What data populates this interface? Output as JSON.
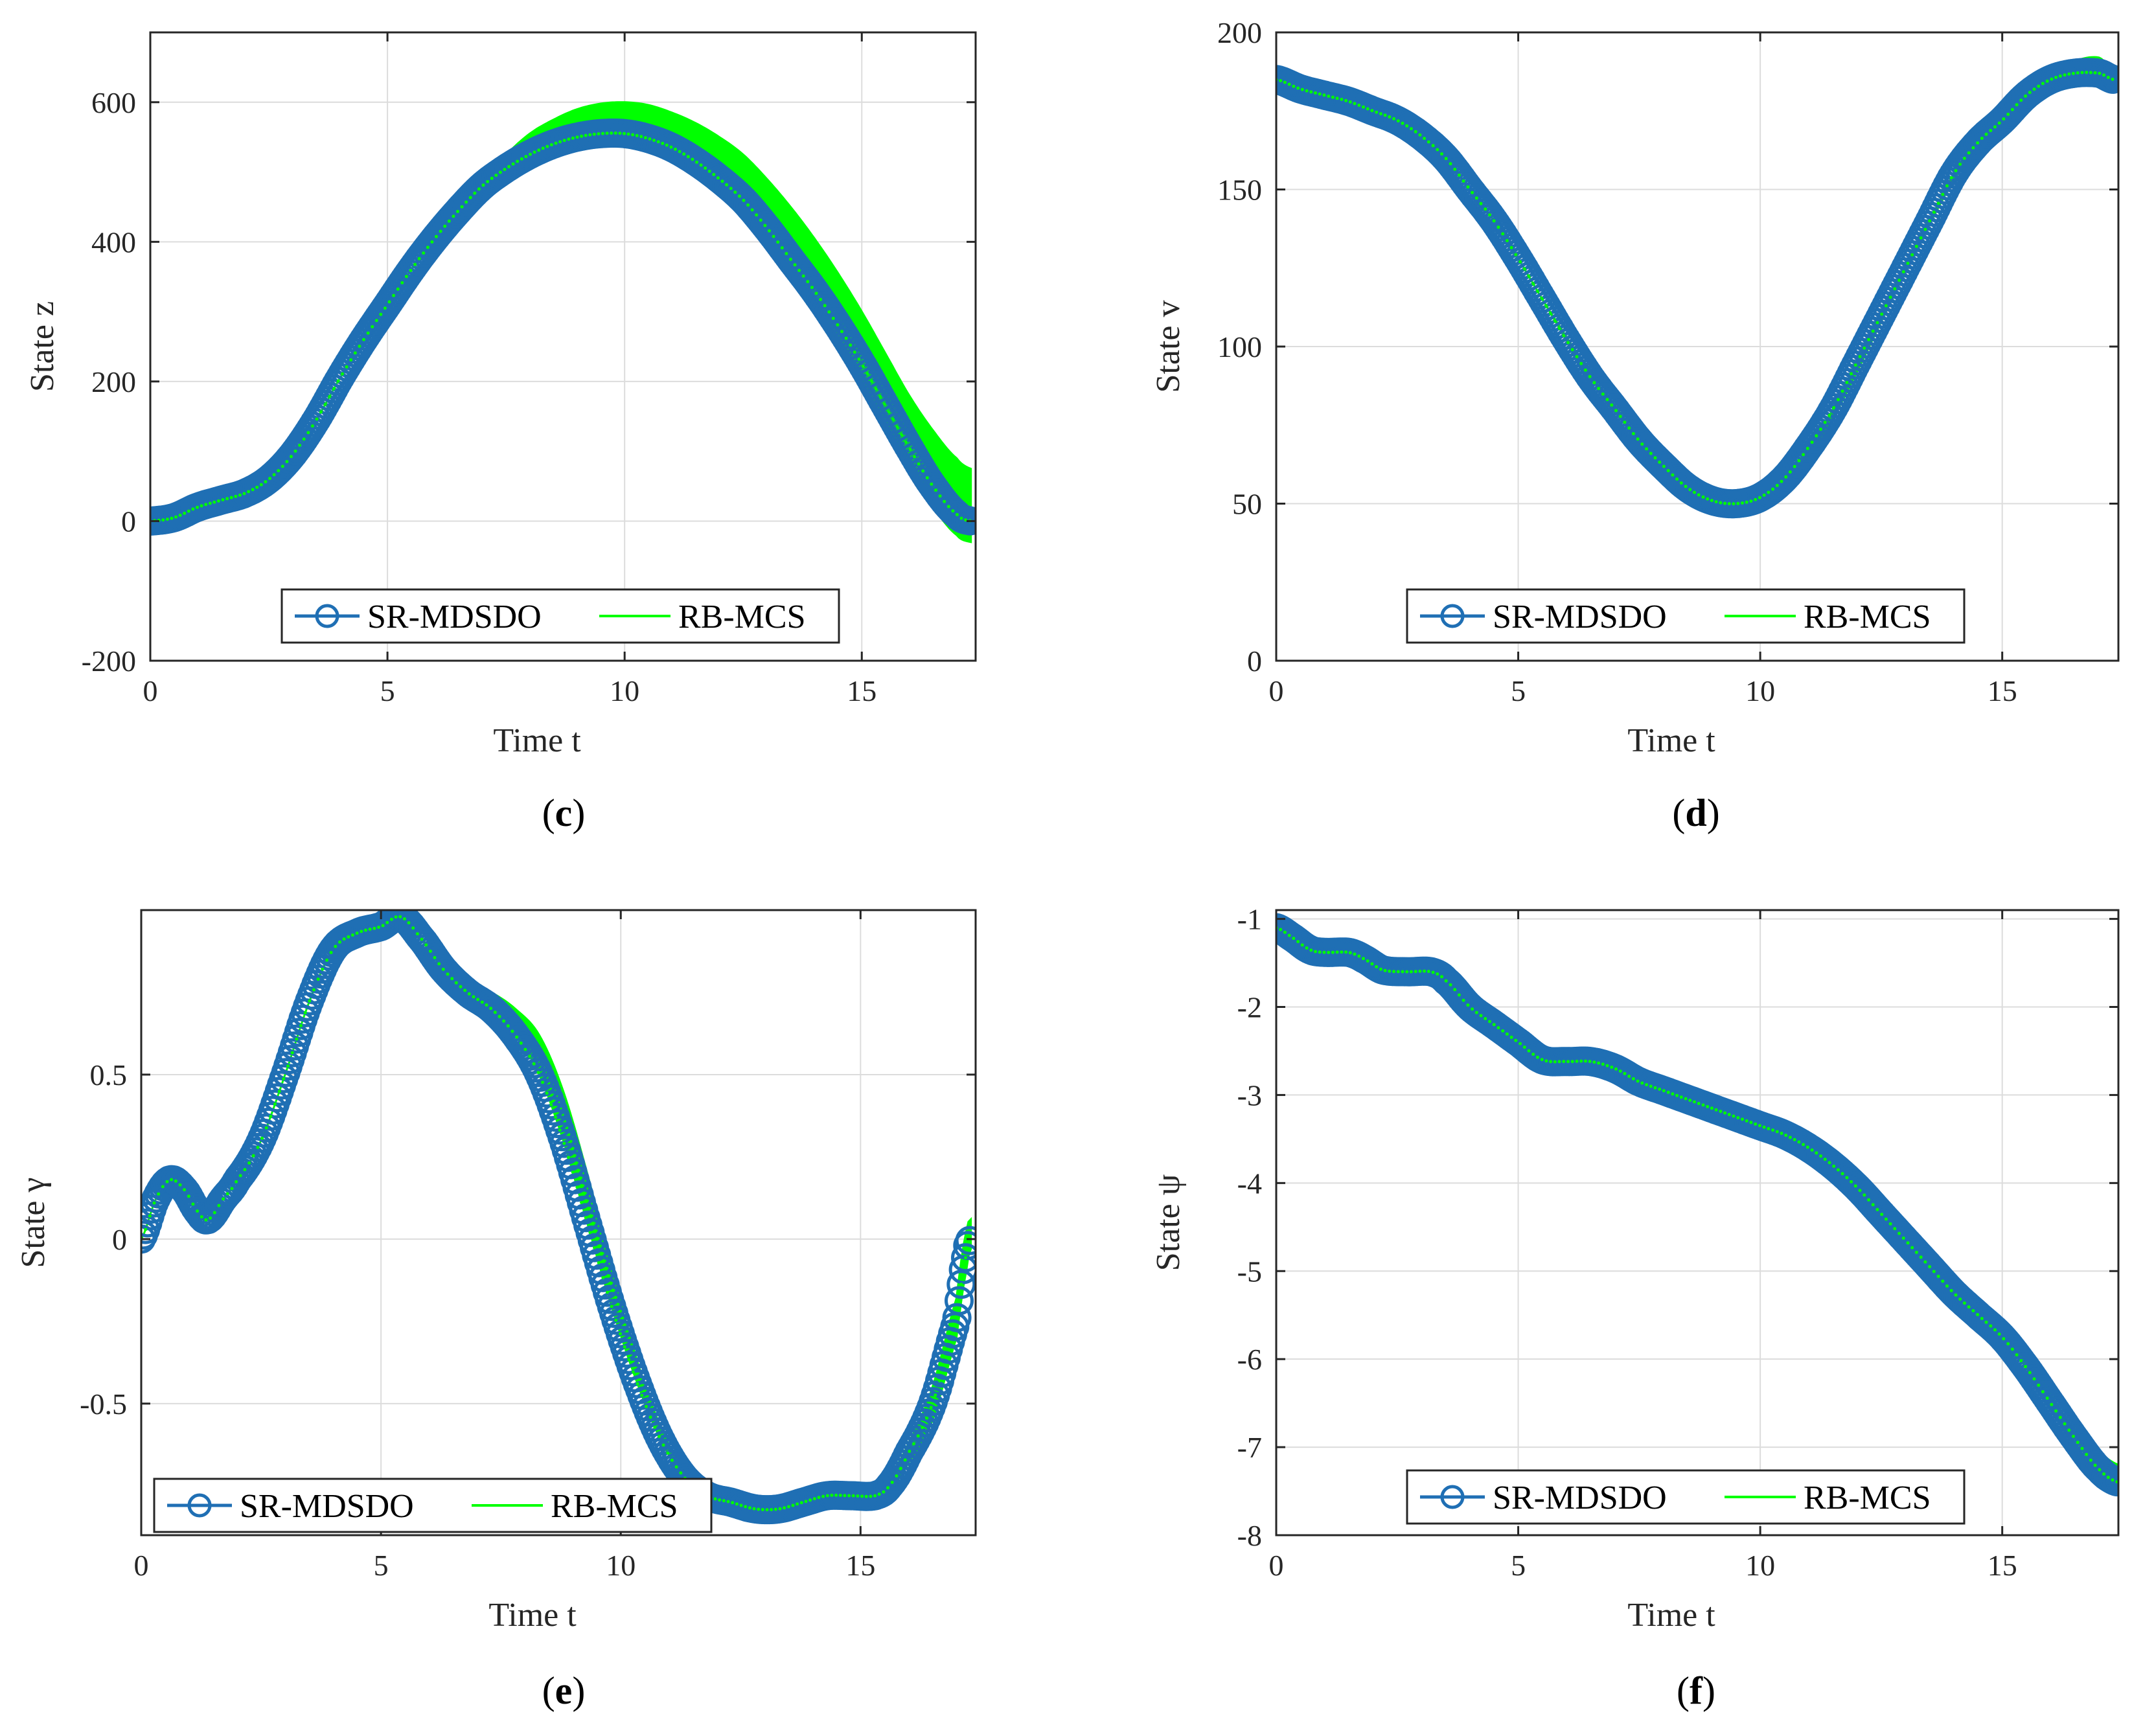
{
  "colors": {
    "sr": "#1f6fb4",
    "rb": "#00ff00",
    "axis": "#262626",
    "grid": "#dcdcdc"
  },
  "chart_data": [
    {
      "type": "line",
      "panel": "c",
      "xlabel": "Time t",
      "ylabel": "State z",
      "xlim": [
        0,
        17.4
      ],
      "ylim": [
        -200,
        700
      ],
      "xticks": [
        0,
        5,
        10,
        15
      ],
      "yticks": [
        -200,
        0,
        200,
        400,
        600
      ],
      "grid": true,
      "legend": {
        "position": "bottom-center",
        "entries": [
          "SR-MDSDO",
          "RB-MCS"
        ]
      },
      "series": [
        {
          "name": "SR-MDSDO",
          "marker": "circle",
          "x": [
            0,
            0.5,
            1,
            1.5,
            2,
            2.5,
            3,
            3.5,
            4,
            4.5,
            5,
            5.5,
            6,
            6.5,
            7,
            7.5,
            8,
            8.5,
            9,
            9.5,
            10,
            10.5,
            11,
            11.5,
            12,
            12.5,
            13,
            13.5,
            14,
            14.5,
            15,
            15.5,
            16,
            16.5,
            17,
            17.3
          ],
          "y": [
            0,
            5,
            20,
            30,
            40,
            60,
            95,
            145,
            205,
            260,
            310,
            360,
            405,
            445,
            480,
            505,
            525,
            540,
            550,
            555,
            555,
            548,
            535,
            515,
            490,
            460,
            420,
            375,
            330,
            280,
            225,
            165,
            105,
            50,
            10,
            0
          ]
        },
        {
          "name": "RB-MCS",
          "band": true,
          "x": [
            0,
            0.5,
            1,
            1.5,
            2,
            2.5,
            3,
            3.5,
            4,
            4.5,
            5,
            5.5,
            6,
            6.5,
            7,
            7.5,
            8,
            8.5,
            9,
            9.5,
            10,
            10.5,
            11,
            11.5,
            12,
            12.5,
            13,
            13.5,
            14,
            14.5,
            15,
            15.5,
            16,
            16.5,
            17,
            17.3
          ],
          "y_low": [
            0,
            5,
            20,
            30,
            40,
            60,
            95,
            145,
            205,
            260,
            310,
            360,
            405,
            445,
            478,
            500,
            518,
            530,
            538,
            540,
            538,
            530,
            515,
            495,
            470,
            440,
            400,
            355,
            305,
            250,
            190,
            130,
            70,
            20,
            -20,
            -30
          ],
          "y_high": [
            0,
            5,
            20,
            30,
            40,
            60,
            95,
            145,
            205,
            260,
            310,
            360,
            408,
            450,
            490,
            525,
            555,
            575,
            590,
            598,
            600,
            596,
            585,
            570,
            550,
            525,
            490,
            450,
            405,
            355,
            300,
            240,
            180,
            130,
            90,
            75
          ]
        }
      ]
    },
    {
      "type": "line",
      "panel": "d",
      "xlabel": "Time t",
      "ylabel": "State v",
      "xlim": [
        0,
        17.4
      ],
      "ylim": [
        0,
        200
      ],
      "xticks": [
        0,
        5,
        10,
        15
      ],
      "yticks": [
        0,
        50,
        100,
        150,
        200
      ],
      "grid": true,
      "legend": {
        "position": "bottom-center",
        "entries": [
          "SR-MDSDO",
          "RB-MCS"
        ]
      },
      "series": [
        {
          "name": "SR-MDSDO",
          "marker": "circle",
          "x": [
            0,
            0.5,
            1,
            1.5,
            2,
            2.5,
            3,
            3.5,
            4,
            4.5,
            5,
            5.5,
            6,
            6.5,
            7,
            7.5,
            8,
            8.5,
            9,
            9.5,
            10,
            10.5,
            11,
            11.5,
            12,
            12.5,
            13,
            13.5,
            14,
            14.5,
            15,
            15.5,
            16,
            16.5,
            17,
            17.3
          ],
          "y": [
            185,
            182,
            180,
            178,
            175,
            172,
            167,
            160,
            150,
            140,
            128,
            115,
            102,
            90,
            80,
            70,
            62,
            55,
            51,
            50,
            52,
            58,
            68,
            80,
            95,
            110,
            125,
            140,
            155,
            165,
            172,
            180,
            185,
            187,
            187,
            185
          ]
        },
        {
          "name": "RB-MCS",
          "band": true,
          "x": [
            0,
            0.5,
            1,
            1.5,
            2,
            2.5,
            3,
            3.5,
            4,
            4.5,
            5,
            5.5,
            6,
            6.5,
            7,
            7.5,
            8,
            8.5,
            9,
            9.5,
            10,
            10.5,
            11,
            11.5,
            12,
            12.5,
            13,
            13.5,
            14,
            14.5,
            15,
            15.5,
            16,
            16.5,
            17,
            17.3
          ],
          "y_low": [
            185,
            182,
            180,
            178,
            175,
            172,
            167,
            160,
            150,
            140,
            128,
            115,
            102,
            90,
            80,
            70,
            62,
            55,
            50,
            48,
            48,
            54,
            64,
            77,
            92,
            108,
            124,
            139,
            153,
            164,
            171,
            178,
            183,
            185,
            185,
            184
          ],
          "y_high": [
            185,
            182,
            180,
            178,
            175,
            172,
            167,
            160,
            150,
            140,
            128,
            115,
            103,
            91,
            81,
            71,
            63,
            56,
            52,
            51,
            52,
            58,
            68,
            80,
            95,
            110,
            125,
            140,
            155,
            166,
            174,
            182,
            188,
            191,
            192,
            188
          ]
        }
      ]
    },
    {
      "type": "line",
      "panel": "e",
      "xlabel": "Time t",
      "ylabel": "State γ",
      "xlim": [
        0,
        17.4
      ],
      "ylim": [
        -0.9,
        1.0
      ],
      "xticks": [
        0,
        5,
        10,
        15
      ],
      "yticks": [
        -0.5,
        0,
        0.5
      ],
      "grid": true,
      "legend": {
        "position": "bottom-left",
        "entries": [
          "SR-MDSDO",
          "RB-MCS"
        ]
      },
      "series": [
        {
          "name": "SR-MDSDO",
          "marker": "circle",
          "x": [
            0,
            0.3,
            0.6,
            0.9,
            1.2,
            1.4,
            1.7,
            2,
            2.5,
            3,
            3.5,
            4,
            4.5,
            5,
            5.4,
            5.8,
            6.3,
            6.8,
            7.3,
            7.8,
            8.3,
            8.8,
            9.3,
            9.8,
            10.3,
            10.8,
            11.3,
            11.8,
            12.3,
            12.8,
            13.3,
            13.8,
            14.3,
            14.8,
            15.3,
            15.6,
            16,
            16.5,
            17,
            17.2,
            17.3
          ],
          "y": [
            0,
            0.12,
            0.18,
            0.15,
            0.08,
            0.06,
            0.12,
            0.18,
            0.3,
            0.5,
            0.72,
            0.88,
            0.93,
            0.95,
            0.98,
            0.92,
            0.82,
            0.75,
            0.7,
            0.62,
            0.5,
            0.3,
            0.05,
            -0.2,
            -0.42,
            -0.6,
            -0.72,
            -0.78,
            -0.8,
            -0.82,
            -0.82,
            -0.8,
            -0.78,
            -0.78,
            -0.78,
            -0.75,
            -0.65,
            -0.5,
            -0.25,
            -0.05,
            0
          ]
        },
        {
          "name": "RB-MCS",
          "band": true,
          "x": [
            0,
            0.3,
            0.6,
            0.9,
            1.2,
            1.4,
            1.7,
            2,
            2.5,
            3,
            3.5,
            4,
            4.5,
            5,
            5.4,
            5.8,
            6.3,
            6.8,
            7.3,
            7.8,
            8.3,
            8.8,
            9.3,
            9.8,
            10.3,
            10.8,
            11.3,
            11.8,
            12.3,
            12.8,
            13.3,
            13.8,
            14.3,
            14.8,
            15.3,
            15.6,
            16,
            16.5,
            17,
            17.2,
            17.3
          ],
          "y_low": [
            0,
            0.12,
            0.18,
            0.15,
            0.08,
            0.06,
            0.12,
            0.18,
            0.3,
            0.5,
            0.72,
            0.88,
            0.93,
            0.95,
            0.98,
            0.92,
            0.82,
            0.75,
            0.7,
            0.62,
            0.5,
            0.3,
            0.05,
            -0.2,
            -0.42,
            -0.6,
            -0.72,
            -0.78,
            -0.81,
            -0.83,
            -0.83,
            -0.81,
            -0.79,
            -0.79,
            -0.79,
            -0.76,
            -0.68,
            -0.55,
            -0.3,
            -0.1,
            -0.03
          ],
          "y_high": [
            0,
            0.12,
            0.18,
            0.15,
            0.08,
            0.06,
            0.12,
            0.18,
            0.3,
            0.5,
            0.72,
            0.88,
            0.93,
            0.95,
            0.98,
            0.92,
            0.84,
            0.78,
            0.75,
            0.7,
            0.62,
            0.45,
            0.2,
            -0.08,
            -0.35,
            -0.56,
            -0.7,
            -0.77,
            -0.79,
            -0.8,
            -0.8,
            -0.79,
            -0.77,
            -0.77,
            -0.76,
            -0.72,
            -0.62,
            -0.45,
            -0.18,
            0.02,
            0.06
          ]
        }
      ]
    },
    {
      "type": "line",
      "panel": "f",
      "xlabel": "Time t",
      "ylabel": "State ψ",
      "xlim": [
        0,
        17.4
      ],
      "ylim": [
        -8,
        -0.9
      ],
      "xticks": [
        0,
        5,
        10,
        15
      ],
      "yticks": [
        -8,
        -7,
        -6,
        -5,
        -4,
        -3,
        -2,
        -1
      ],
      "grid": true,
      "legend": {
        "position": "bottom-center",
        "entries": [
          "SR-MDSDO",
          "RB-MCS"
        ]
      },
      "series": [
        {
          "name": "SR-MDSDO",
          "marker": "circle",
          "x": [
            0,
            0.3,
            0.7,
            1,
            1.5,
            1.8,
            2.2,
            2.7,
            3.2,
            3.5,
            4,
            4.5,
            5,
            5.5,
            6,
            6.5,
            7,
            7.5,
            8,
            8.5,
            9,
            9.5,
            10,
            10.5,
            11,
            11.5,
            12,
            12.5,
            13,
            13.5,
            14,
            14.5,
            15,
            15.5,
            16,
            16.5,
            17,
            17.4
          ],
          "y": [
            -1.1,
            -1.2,
            -1.35,
            -1.38,
            -1.38,
            -1.45,
            -1.58,
            -1.6,
            -1.6,
            -1.7,
            -2.0,
            -2.2,
            -2.4,
            -2.6,
            -2.62,
            -2.62,
            -2.7,
            -2.85,
            -2.95,
            -3.05,
            -3.15,
            -3.25,
            -3.35,
            -3.45,
            -3.6,
            -3.8,
            -4.05,
            -4.35,
            -4.65,
            -4.95,
            -5.25,
            -5.5,
            -5.75,
            -6.1,
            -6.5,
            -6.9,
            -7.25,
            -7.4
          ]
        },
        {
          "name": "RB-MCS",
          "band": true,
          "x": [
            0,
            0.3,
            0.7,
            1,
            1.5,
            1.8,
            2.2,
            2.7,
            3.2,
            3.5,
            4,
            4.5,
            5,
            5.5,
            6,
            6.5,
            7,
            7.5,
            8,
            8.5,
            9,
            9.5,
            10,
            10.5,
            11,
            11.5,
            12,
            12.5,
            13,
            13.5,
            14,
            14.5,
            15,
            15.5,
            16,
            16.5,
            17,
            17.4
          ],
          "y_low": [
            -1.1,
            -1.2,
            -1.35,
            -1.38,
            -1.38,
            -1.45,
            -1.58,
            -1.6,
            -1.6,
            -1.7,
            -2.0,
            -2.2,
            -2.4,
            -2.6,
            -2.62,
            -2.62,
            -2.7,
            -2.85,
            -2.95,
            -3.05,
            -3.15,
            -3.25,
            -3.35,
            -3.45,
            -3.6,
            -3.8,
            -4.05,
            -4.35,
            -4.65,
            -4.95,
            -5.25,
            -5.5,
            -5.75,
            -6.1,
            -6.5,
            -6.9,
            -7.3,
            -7.45
          ],
          "y_high": [
            -1.1,
            -1.2,
            -1.35,
            -1.38,
            -1.38,
            -1.45,
            -1.58,
            -1.6,
            -1.6,
            -1.7,
            -2.0,
            -2.2,
            -2.4,
            -2.6,
            -2.62,
            -2.62,
            -2.7,
            -2.85,
            -2.95,
            -3.05,
            -3.15,
            -3.25,
            -3.35,
            -3.45,
            -3.6,
            -3.8,
            -4.05,
            -4.35,
            -4.6,
            -4.9,
            -5.2,
            -5.4,
            -5.6,
            -5.95,
            -6.4,
            -6.8,
            -7.05,
            -7.2
          ]
        }
      ]
    }
  ]
}
